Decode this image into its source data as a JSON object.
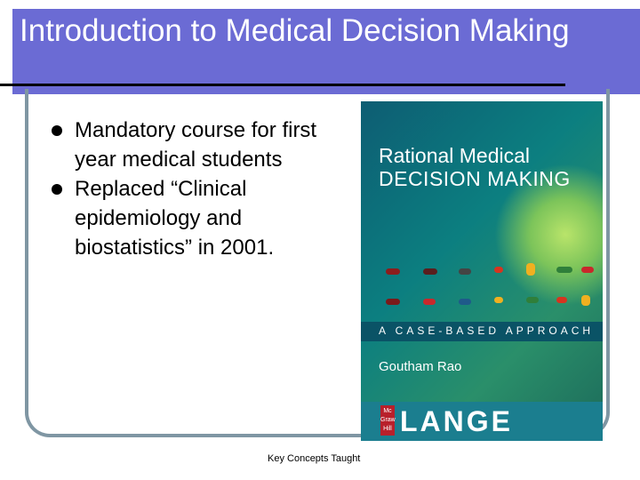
{
  "slide": {
    "title": "Introduction to Medical Decision Making",
    "bullets": [
      "Mandatory course for first year medical students",
      "Replaced “Clinical epidemiology and biostatistics” in 2001."
    ],
    "caption": "Key Concepts Taught"
  },
  "book": {
    "title_line1": "Rational Medical",
    "title_line2": "DECISION MAKING",
    "subtitle": "A CASE-BASED APPROACH",
    "author": "Goutham Rao",
    "publisher_text": "Mc Graw Hill",
    "publisher_brand": "LANGE"
  },
  "colors": {
    "title_band": "#6b6bd4",
    "frame": "#7f96a3",
    "book_strip": "#0a5366",
    "publisher_red": "#b8202b"
  }
}
